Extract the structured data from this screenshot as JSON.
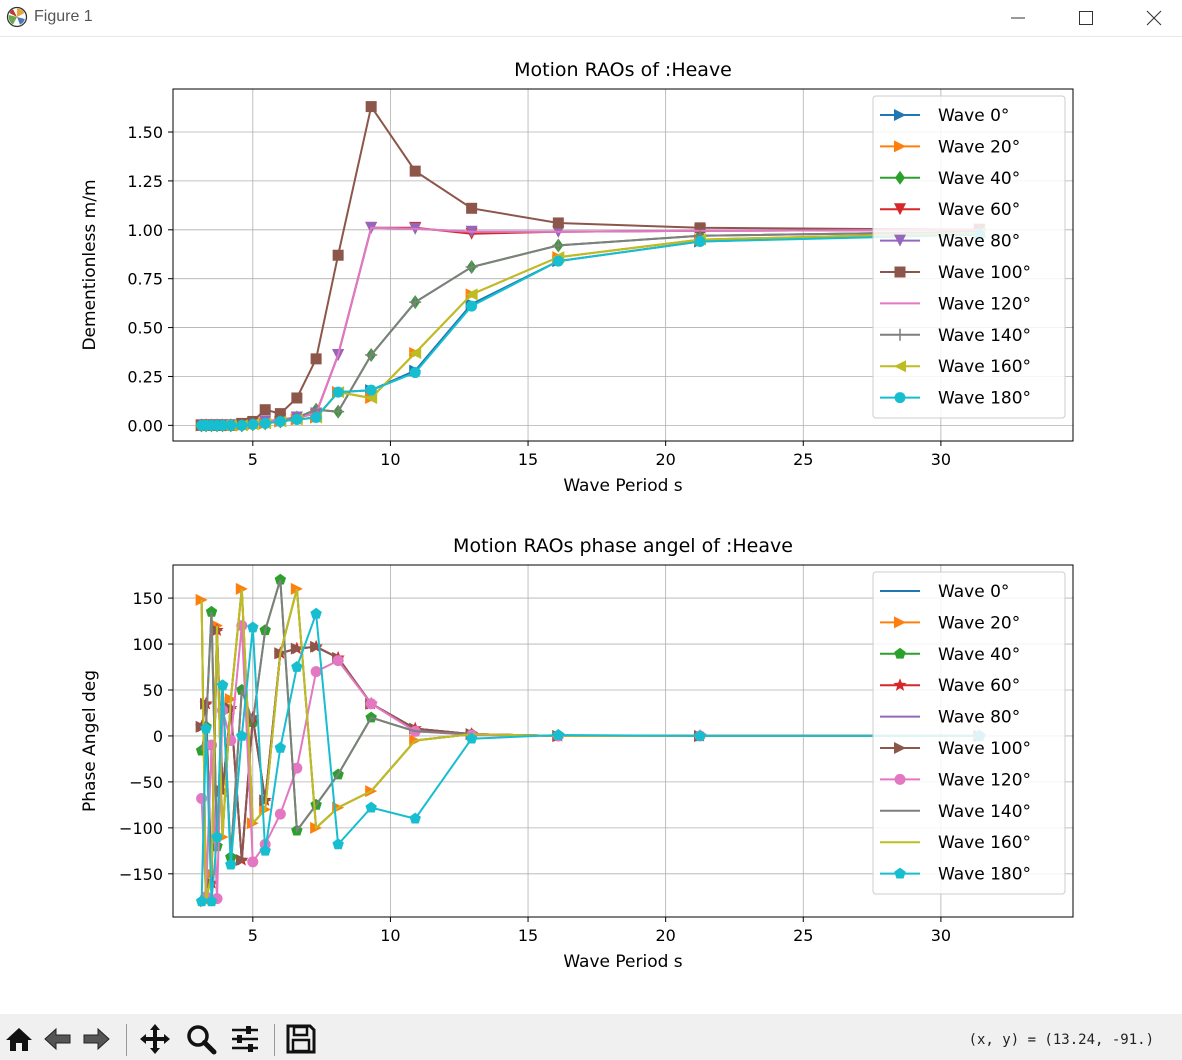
{
  "window": {
    "title": "Figure 1"
  },
  "toolbar": {
    "buttons": [
      "home-icon",
      "back-arrow-icon",
      "forward-arrow-icon",
      "pan-icon",
      "zoom-icon",
      "configure-subplots-icon",
      "save-icon"
    ],
    "coords_label": "(x, y) = (13.24, -91.)"
  },
  "chart_data": [
    {
      "type": "line",
      "title": "Motion RAOs of :Heave",
      "xlabel": "Wave Period  s",
      "ylabel": "Dementionless  m/m",
      "xlim": [
        2.1,
        34.8
      ],
      "ylim": [
        -0.08,
        1.72
      ],
      "xticks": [
        5,
        10,
        15,
        20,
        25,
        30
      ],
      "yticks": [
        0.0,
        0.25,
        0.5,
        0.75,
        1.0,
        1.25,
        1.5
      ],
      "ytick_labels": [
        "0.00",
        "0.25",
        "0.50",
        "0.75",
        "1.00",
        "1.25",
        "1.50"
      ],
      "grid": true,
      "legend_position": "upper right",
      "x": [
        3.14,
        3.3,
        3.5,
        3.7,
        3.9,
        4.2,
        4.6,
        5.0,
        5.45,
        6.0,
        6.6,
        7.3,
        8.1,
        9.3,
        10.9,
        12.95,
        16.1,
        21.25,
        31.4
      ],
      "series": [
        {
          "name": "Wave 0°",
          "color": "#1f77b4",
          "marker": "triangle-right",
          "values": [
            0,
            0,
            0,
            0,
            0,
            0,
            0,
            0.005,
            0.01,
            0.02,
            0.03,
            0.04,
            0.17,
            0.18,
            0.28,
            0.62,
            0.84,
            0.94,
            0.98
          ]
        },
        {
          "name": "Wave 20°",
          "color": "#ff7f0e",
          "marker": "triangle-right",
          "values": [
            0,
            0,
            0,
            0,
            0,
            0,
            0,
            0.005,
            0.01,
            0.02,
            0.03,
            0.04,
            0.17,
            0.14,
            0.37,
            0.67,
            0.86,
            0.95,
            0.985
          ]
        },
        {
          "name": "Wave 40°",
          "color": "#2ca02c",
          "marker": "diamond",
          "values": [
            0,
            0,
            0,
            0,
            0,
            0,
            0,
            0.005,
            0.01,
            0.02,
            0.04,
            0.08,
            0.07,
            0.36,
            0.63,
            0.81,
            0.92,
            0.97,
            0.99
          ]
        },
        {
          "name": "Wave 60°",
          "color": "#d62728",
          "marker": "triangle-down",
          "values": [
            0,
            0,
            0,
            0,
            0,
            0,
            0.005,
            0.01,
            0.02,
            0.03,
            0.04,
            0.06,
            0.36,
            1.01,
            1.01,
            0.98,
            0.99,
            0.995,
            1.0
          ]
        },
        {
          "name": "Wave 80°",
          "color": "#9467bd",
          "marker": "triangle-down",
          "values": [
            0,
            0,
            0,
            0,
            0,
            0,
            0.005,
            0.01,
            0.02,
            0.03,
            0.04,
            0.06,
            0.36,
            1.01,
            1.005,
            0.99,
            0.99,
            0.995,
            1.0
          ]
        },
        {
          "name": "Wave 100°",
          "color": "#8c564b",
          "marker": "square",
          "values": [
            0,
            0,
            0,
            0,
            0,
            0,
            0.01,
            0.02,
            0.08,
            0.06,
            0.14,
            0.34,
            0.87,
            1.63,
            1.3,
            1.11,
            1.035,
            1.01,
            1.0
          ]
        },
        {
          "name": "Wave 120°",
          "color": "#e377c2",
          "marker": "none",
          "values": [
            0,
            0,
            0,
            0,
            0,
            0,
            0.005,
            0.01,
            0.02,
            0.03,
            0.04,
            0.06,
            0.36,
            1.01,
            1.005,
            0.99,
            0.99,
            0.995,
            1.0
          ]
        },
        {
          "name": "Wave 140°",
          "color": "#7f7f7f",
          "marker": "plus",
          "values": [
            0,
            0,
            0,
            0,
            0,
            0,
            0,
            0.005,
            0.01,
            0.02,
            0.04,
            0.08,
            0.07,
            0.36,
            0.63,
            0.81,
            0.92,
            0.97,
            0.99
          ]
        },
        {
          "name": "Wave 160°",
          "color": "#bcbd22",
          "marker": "triangle-left",
          "values": [
            0,
            0,
            0,
            0,
            0,
            0,
            0,
            0.005,
            0.01,
            0.02,
            0.03,
            0.04,
            0.17,
            0.14,
            0.37,
            0.67,
            0.86,
            0.95,
            0.985
          ]
        },
        {
          "name": "Wave 180°",
          "color": "#17becf",
          "marker": "circle",
          "values": [
            0,
            0,
            0,
            0,
            0,
            0,
            0,
            0.005,
            0.01,
            0.02,
            0.03,
            0.04,
            0.17,
            0.18,
            0.27,
            0.61,
            0.84,
            0.94,
            0.975
          ]
        }
      ]
    },
    {
      "type": "line",
      "title": "Motion RAOs phase angel of :Heave",
      "xlabel": "Wave Period  s",
      "ylabel": "Phase Angel  deg",
      "xlim": [
        2.1,
        34.8
      ],
      "ylim": [
        -197,
        186
      ],
      "xticks": [
        5,
        10,
        15,
        20,
        25,
        30
      ],
      "yticks": [
        -150,
        -100,
        -50,
        0,
        50,
        100,
        150
      ],
      "ytick_labels": [
        "−150",
        "−100",
        "−50",
        "0",
        "50",
        "100",
        "150"
      ],
      "grid": true,
      "legend_position": "upper right",
      "x": [
        3.14,
        3.3,
        3.5,
        3.7,
        3.9,
        4.2,
        4.6,
        5.0,
        5.45,
        6.0,
        6.6,
        7.3,
        8.1,
        9.3,
        10.9,
        12.95,
        16.1,
        21.25,
        31.4
      ],
      "series": [
        {
          "name": "Wave 0°",
          "color": "#1f77b4",
          "marker": "none",
          "values": [
            148,
            -180,
            -150,
            120,
            -110,
            40,
            160,
            -95,
            -80,
            90,
            160,
            -100,
            -78,
            -60,
            -5,
            2,
            0,
            0,
            0
          ]
        },
        {
          "name": "Wave 20°",
          "color": "#ff7f0e",
          "marker": "triangle-right",
          "values": [
            148,
            -180,
            -150,
            120,
            -110,
            40,
            160,
            -95,
            -80,
            90,
            160,
            -100,
            -78,
            -60,
            -5,
            2,
            0,
            0,
            0
          ]
        },
        {
          "name": "Wave 40°",
          "color": "#2ca02c",
          "marker": "pentagon",
          "values": [
            -16,
            10,
            135,
            -120,
            55,
            -132,
            50,
            15,
            115,
            170,
            -103,
            -75,
            -42,
            20,
            5,
            2,
            0,
            0,
            0
          ]
        },
        {
          "name": "Wave 60°",
          "color": "#d62728",
          "marker": "star",
          "values": [
            10,
            35,
            -160,
            115,
            -60,
            30,
            -135,
            20,
            -70,
            90,
            95,
            97,
            85,
            35,
            8,
            2,
            0,
            0,
            0
          ]
        },
        {
          "name": "Wave 80°",
          "color": "#9467bd",
          "marker": "none",
          "values": [
            10,
            35,
            -160,
            115,
            -60,
            30,
            -135,
            20,
            -70,
            90,
            95,
            97,
            85,
            35,
            8,
            2,
            0,
            0,
            0
          ]
        },
        {
          "name": "Wave 100°",
          "color": "#8c564b",
          "marker": "triangle-right",
          "values": [
            10,
            35,
            -160,
            115,
            -60,
            30,
            -135,
            20,
            -70,
            90,
            95,
            97,
            85,
            35,
            8,
            2,
            0,
            0,
            0
          ]
        },
        {
          "name": "Wave 120°",
          "color": "#e377c2",
          "marker": "circle",
          "values": [
            -68,
            -175,
            -10,
            -177,
            28,
            -5,
            120,
            -137,
            -118,
            -85,
            -35,
            70,
            82,
            35,
            5,
            1,
            0,
            0,
            0
          ]
        },
        {
          "name": "Wave 140°",
          "color": "#7f7f7f",
          "marker": "none",
          "values": [
            -16,
            10,
            135,
            -120,
            55,
            -132,
            50,
            15,
            115,
            170,
            -103,
            -75,
            -42,
            20,
            5,
            2,
            0,
            0,
            0
          ]
        },
        {
          "name": "Wave 160°",
          "color": "#bcbd22",
          "marker": "none",
          "values": [
            148,
            -180,
            -150,
            120,
            -110,
            40,
            160,
            -95,
            -80,
            90,
            160,
            -100,
            -78,
            -60,
            -5,
            2,
            0,
            0,
            0
          ]
        },
        {
          "name": "Wave 180°",
          "color": "#17becf",
          "marker": "pentagon",
          "values": [
            -180,
            8,
            -180,
            -110,
            55,
            -140,
            0,
            118,
            -125,
            -13,
            75,
            133,
            -118,
            -78,
            -90,
            -3,
            1,
            0,
            0
          ]
        }
      ]
    }
  ]
}
